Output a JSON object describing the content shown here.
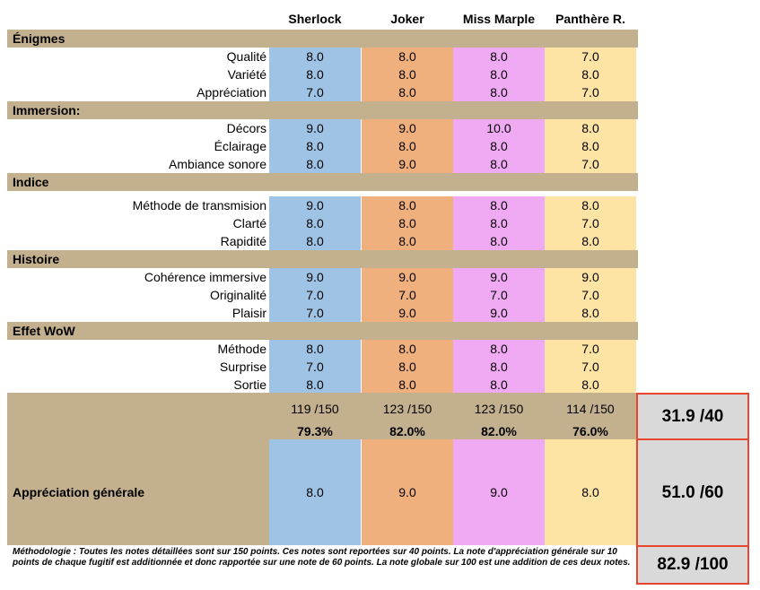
{
  "columns": [
    "Sherlock",
    "Joker",
    "Miss Marple",
    "Panthère R."
  ],
  "colors": {
    "section_bg": "#c2b08e",
    "sherlock": "#9fc3e4",
    "joker": "#efb07d",
    "miss_marple": "#f0a9f3",
    "panthere": "#fde3a4",
    "box_border": "#e8452f",
    "box_bg": "#d9d9d9"
  },
  "sections": [
    {
      "title": "Énigmes",
      "rows": [
        {
          "label": "Qualité",
          "values": [
            "8.0",
            "8.0",
            "8.0",
            "7.0"
          ]
        },
        {
          "label": "Variété",
          "values": [
            "8.0",
            "8.0",
            "8.0",
            "8.0"
          ]
        },
        {
          "label": "Appréciation",
          "values": [
            "7.0",
            "8.0",
            "8.0",
            "7.0"
          ]
        }
      ]
    },
    {
      "title": "Immersion:",
      "rows": [
        {
          "label": "Décors",
          "values": [
            "9.0",
            "9.0",
            "10.0",
            "8.0"
          ]
        },
        {
          "label": "Éclairage",
          "values": [
            "8.0",
            "8.0",
            "8.0",
            "8.0"
          ]
        },
        {
          "label": "Ambiance sonore",
          "values": [
            "8.0",
            "9.0",
            "8.0",
            "7.0"
          ]
        }
      ]
    },
    {
      "title": "Indice",
      "rows": [
        {
          "label": "Méthode de transmision",
          "values": [
            "9.0",
            "8.0",
            "8.0",
            "8.0"
          ]
        },
        {
          "label": "Clarté",
          "values": [
            "8.0",
            "8.0",
            "8.0",
            "7.0"
          ]
        },
        {
          "label": "Rapidité",
          "values": [
            "8.0",
            "8.0",
            "8.0",
            "8.0"
          ]
        }
      ]
    },
    {
      "title": "Histoire",
      "rows": [
        {
          "label": "Cohérence immersive",
          "values": [
            "9.0",
            "9.0",
            "9.0",
            "9.0"
          ]
        },
        {
          "label": "Originalité",
          "values": [
            "7.0",
            "7.0",
            "7.0",
            "7.0"
          ]
        },
        {
          "label": "Plaisir",
          "values": [
            "7.0",
            "9.0",
            "9.0",
            "8.0"
          ]
        }
      ]
    },
    {
      "title": "Effet WoW",
      "rows": [
        {
          "label": "Méthode",
          "values": [
            "8.0",
            "8.0",
            "8.0",
            "7.0"
          ]
        },
        {
          "label": "Surprise",
          "values": [
            "7.0",
            "8.0",
            "8.0",
            "7.0"
          ]
        },
        {
          "label": "Sortie",
          "values": [
            "8.0",
            "8.0",
            "8.0",
            "8.0"
          ]
        }
      ]
    }
  ],
  "totals": [
    "119  /150",
    "123  /150",
    "123  /150",
    "114  /150"
  ],
  "percents": [
    "79.3%",
    "82.0%",
    "82.0%",
    "76.0%"
  ],
  "general": {
    "label": "Appréciation générale",
    "values": [
      "8.0",
      "9.0",
      "9.0",
      "8.0"
    ]
  },
  "scores": {
    "detail": "31.9 /40",
    "general": "51.0 /60",
    "global": "82.9 /100"
  },
  "methodology": "Méthodologie : Toutes les notes détaillées sont sur 150 points. Ces notes sont reportées sur 40 points. La note d'appréciation générale sur 10 points de chaque fugitif est additionnée et donc rapportée sur une note de 60 points. La note globale sur 100 est une addition de ces deux notes."
}
